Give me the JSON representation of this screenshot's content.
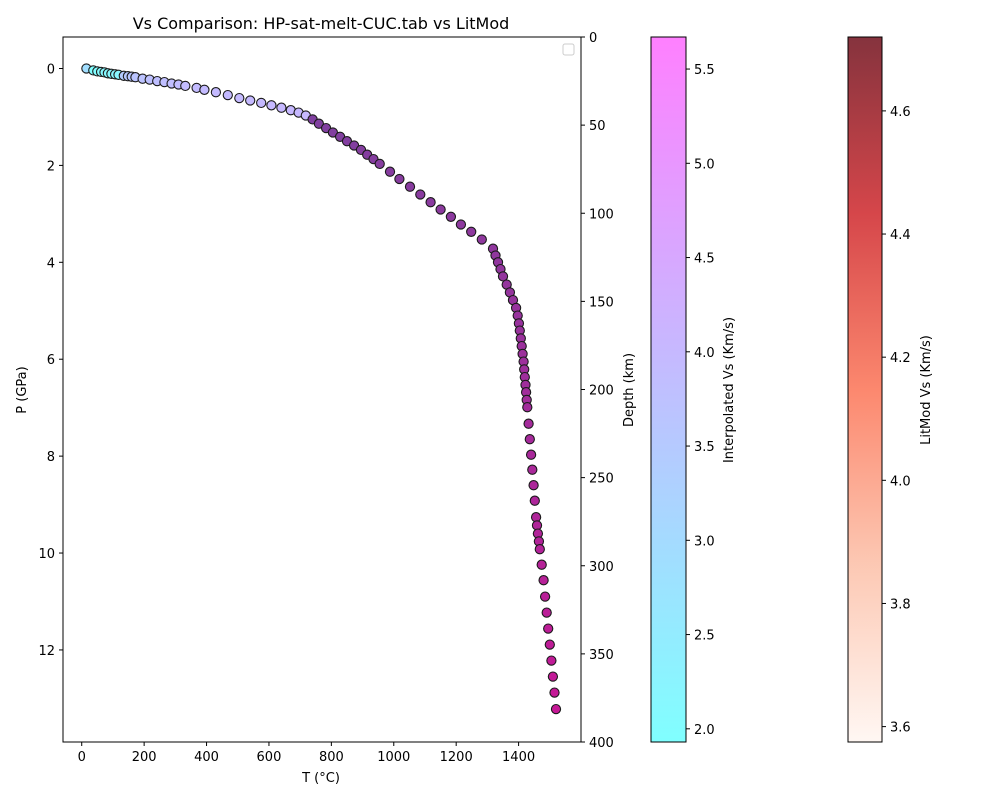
{
  "chart_data": {
    "type": "scatter",
    "title": "Vs Comparison: HP-sat-melt-CUC.tab vs LitMod",
    "xlabel": "T (°C)",
    "ylabel": "P (GPa)",
    "y2label": "Depth (km)",
    "xlim": [
      -60,
      1600
    ],
    "ylim": [
      13.9,
      -0.65
    ],
    "y2lim": [
      400,
      0
    ],
    "xticks": [
      0,
      200,
      400,
      600,
      800,
      1000,
      1200,
      1400
    ],
    "yticks": [
      0,
      2,
      4,
      6,
      8,
      10,
      12
    ],
    "y2ticks": [
      0,
      50,
      100,
      150,
      200,
      250,
      300,
      350,
      400
    ],
    "grid": false,
    "legend": "top-right (empty)",
    "colorbars": [
      {
        "label": "Interpolated Vs (Km/s)",
        "range": [
          1.93,
          5.67
        ],
        "ticks": [
          2.0,
          2.5,
          3.0,
          3.5,
          4.0,
          4.5,
          5.0,
          5.5
        ],
        "colormap": "cool",
        "alpha": 0.5
      },
      {
        "label": "LitMod Vs (Km/s)",
        "range": [
          3.575,
          4.72
        ],
        "ticks": [
          3.6,
          3.8,
          4.0,
          4.2,
          4.4,
          4.6
        ],
        "colormap": "Reds",
        "alpha": 0.8
      }
    ],
    "series": [
      {
        "values": [
          [
            15,
            0.0,
            2.9
          ],
          [
            37,
            0.04,
            1.95
          ],
          [
            50,
            0.06,
            2.0
          ],
          [
            62,
            0.07,
            2.05
          ],
          [
            73,
            0.08,
            2.1
          ],
          [
            84,
            0.1,
            2.1
          ],
          [
            95,
            0.11,
            2.15
          ],
          [
            107,
            0.12,
            2.2
          ],
          [
            118,
            0.13,
            2.2
          ],
          [
            135,
            0.15,
            3.45
          ],
          [
            148,
            0.16,
            3.55
          ],
          [
            160,
            0.17,
            3.6
          ],
          [
            172,
            0.18,
            3.65
          ],
          [
            195,
            0.21,
            3.7
          ],
          [
            218,
            0.23,
            3.75
          ],
          [
            242,
            0.26,
            3.8
          ],
          [
            265,
            0.28,
            3.82
          ],
          [
            288,
            0.31,
            3.85
          ],
          [
            310,
            0.33,
            3.87
          ],
          [
            332,
            0.36,
            3.9
          ],
          [
            368,
            0.4,
            3.92
          ],
          [
            393,
            0.44,
            3.93
          ],
          [
            430,
            0.49,
            3.95
          ],
          [
            468,
            0.55,
            3.95
          ],
          [
            505,
            0.61,
            3.96
          ],
          [
            540,
            0.66,
            3.97
          ],
          [
            575,
            0.71,
            3.98
          ],
          [
            608,
            0.76,
            3.99
          ],
          [
            640,
            0.81,
            4.0
          ],
          [
            670,
            0.86,
            4.0
          ],
          [
            695,
            0.91,
            4.01
          ],
          [
            718,
            0.97,
            4.02
          ],
          [
            740,
            1.05,
            4.4
          ],
          [
            760,
            1.14,
            4.42
          ],
          [
            783,
            1.23,
            4.43
          ],
          [
            805,
            1.32,
            4.44
          ],
          [
            828,
            1.41,
            4.45
          ],
          [
            850,
            1.5,
            4.45
          ],
          [
            873,
            1.59,
            4.46
          ],
          [
            895,
            1.68,
            4.47
          ],
          [
            915,
            1.78,
            4.47
          ],
          [
            935,
            1.87,
            4.48
          ],
          [
            955,
            1.97,
            4.48
          ],
          [
            988,
            2.13,
            4.49
          ],
          [
            1018,
            2.28,
            4.5
          ],
          [
            1052,
            2.44,
            4.51
          ],
          [
            1085,
            2.6,
            4.52
          ],
          [
            1118,
            2.76,
            4.53
          ],
          [
            1150,
            2.91,
            4.54
          ],
          [
            1183,
            3.06,
            4.55
          ],
          [
            1215,
            3.22,
            4.56
          ],
          [
            1248,
            3.37,
            4.57
          ],
          [
            1282,
            3.53,
            4.58
          ],
          [
            1318,
            3.72,
            4.58
          ],
          [
            1326,
            3.86,
            4.59
          ],
          [
            1334,
            4.0,
            4.6
          ],
          [
            1342,
            4.14,
            4.6
          ],
          [
            1350,
            4.29,
            4.61
          ],
          [
            1362,
            4.46,
            4.62
          ],
          [
            1372,
            4.62,
            4.62
          ],
          [
            1382,
            4.78,
            4.63
          ],
          [
            1392,
            4.94,
            4.63
          ],
          [
            1397,
            5.1,
            4.64
          ],
          [
            1401,
            5.26,
            4.64
          ],
          [
            1404,
            5.41,
            4.65
          ],
          [
            1407,
            5.57,
            4.65
          ],
          [
            1410,
            5.73,
            4.66
          ],
          [
            1413,
            5.89,
            4.66
          ],
          [
            1416,
            6.05,
            4.67
          ],
          [
            1418,
            6.21,
            4.67
          ],
          [
            1420,
            6.37,
            4.68
          ],
          [
            1422,
            6.53,
            4.68
          ],
          [
            1424,
            6.68,
            4.69
          ],
          [
            1426,
            6.84,
            4.69
          ],
          [
            1428,
            6.99,
            4.7
          ],
          [
            1432,
            7.33,
            4.71
          ],
          [
            1436,
            7.65,
            4.72
          ],
          [
            1440,
            7.97,
            4.73
          ],
          [
            1444,
            8.28,
            4.74
          ],
          [
            1448,
            8.6,
            4.75
          ],
          [
            1452,
            8.92,
            4.76
          ],
          [
            1456,
            9.26,
            4.77
          ],
          [
            1459,
            9.43,
            4.78
          ],
          [
            1462,
            9.6,
            4.79
          ],
          [
            1465,
            9.76,
            4.8
          ],
          [
            1468,
            9.92,
            4.8
          ],
          [
            1474,
            10.24,
            4.82
          ],
          [
            1480,
            10.56,
            4.85
          ],
          [
            1485,
            10.9,
            4.87
          ],
          [
            1490,
            11.23,
            4.9
          ],
          [
            1495,
            11.56,
            4.93
          ],
          [
            1500,
            11.89,
            4.96
          ],
          [
            1505,
            12.22,
            5.0
          ],
          [
            1510,
            12.55,
            5.03
          ],
          [
            1515,
            12.88,
            5.06
          ],
          [
            1520,
            13.22,
            5.1
          ]
        ]
      }
    ]
  }
}
